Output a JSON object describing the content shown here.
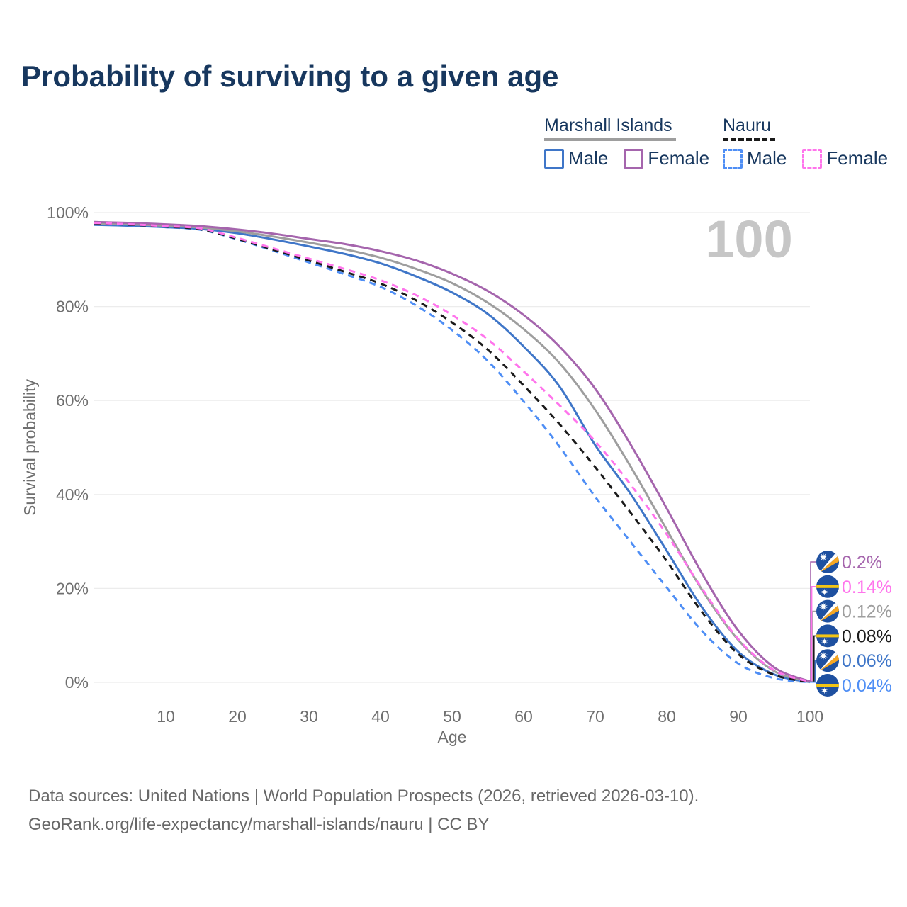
{
  "header": {
    "title": "Probability of surviving to a given age"
  },
  "legend": {
    "groups": [
      {
        "id": "marshall-islands",
        "label": "Marshall Islands",
        "underline_series": "mi-total",
        "items": [
          {
            "label": "Male",
            "series": "mi-male"
          },
          {
            "label": "Female",
            "series": "mi-female"
          }
        ]
      },
      {
        "id": "nauru",
        "label": "Nauru",
        "underline_series": "nauru-total",
        "items": [
          {
            "label": "Male",
            "series": "nauru-male"
          },
          {
            "label": "Female",
            "series": "nauru-female"
          }
        ]
      }
    ]
  },
  "chart_data": {
    "type": "line",
    "title": "Probability of surviving to a given age",
    "xlabel": "Age",
    "ylabel": "Survival probability",
    "watermark": "100",
    "grid": "horizontal",
    "legend_position": "top-right",
    "xlim": [
      0,
      100
    ],
    "ylim": [
      0,
      100
    ],
    "x_ticks": [
      10,
      20,
      30,
      40,
      50,
      60,
      70,
      80,
      90,
      100
    ],
    "y_ticks": [
      "0%",
      "20%",
      "40%",
      "60%",
      "80%",
      "100%"
    ],
    "x": [
      0,
      5,
      10,
      15,
      20,
      25,
      30,
      35,
      40,
      45,
      50,
      55,
      60,
      65,
      70,
      75,
      80,
      85,
      90,
      95,
      100
    ],
    "series": [
      {
        "id": "mi-male",
        "name": "Marshall Islands Male",
        "country": "Marshall Islands",
        "sex": "Male",
        "color": "#3f76c8",
        "line_style": "solid",
        "flag": "marshall-islands",
        "end_label": "0.06%",
        "end_value": 0.06,
        "values": [
          97.4,
          97.2,
          96.9,
          96.5,
          95.6,
          94.3,
          92.8,
          91.2,
          89.2,
          86.4,
          83.0,
          78.4,
          71.5,
          63.0,
          50.5,
          40.0,
          28.0,
          15.8,
          6.5,
          1.7,
          0.06
        ]
      },
      {
        "id": "mi-total",
        "name": "Marshall Islands",
        "country": "Marshall Islands",
        "sex": "Both",
        "color": "#9e9e9e",
        "line_style": "solid",
        "flag": "marshall-islands",
        "end_label": "0.12%",
        "end_value": 0.12,
        "values": [
          97.7,
          97.5,
          97.2,
          96.8,
          96.0,
          94.9,
          93.6,
          92.2,
          90.4,
          88.0,
          85.0,
          80.8,
          75.2,
          68.0,
          58.0,
          45.8,
          32.5,
          19.5,
          9.0,
          2.4,
          0.12
        ]
      },
      {
        "id": "mi-female",
        "name": "Marshall Islands Female",
        "country": "Marshall Islands",
        "sex": "Female",
        "color": "#a565ad",
        "line_style": "solid",
        "flag": "marshall-islands",
        "end_label": "0.2%",
        "end_value": 0.2,
        "values": [
          98.0,
          97.8,
          97.5,
          97.1,
          96.4,
          95.5,
          94.4,
          93.3,
          91.8,
          89.8,
          87.0,
          83.3,
          78.2,
          71.5,
          62.5,
          50.5,
          37.0,
          23.0,
          11.0,
          3.2,
          0.2
        ]
      },
      {
        "id": "nauru-male",
        "name": "Nauru Male",
        "country": "Nauru",
        "sex": "Male",
        "color": "#4e8ef5",
        "line_style": "dashed",
        "flag": "nauru",
        "end_label": "0.04%",
        "end_value": 0.04,
        "values": [
          97.6,
          97.3,
          96.9,
          96.3,
          94.3,
          91.9,
          89.4,
          86.9,
          84.2,
          80.2,
          75.0,
          68.4,
          59.8,
          50.2,
          39.5,
          29.8,
          20.2,
          10.8,
          4.0,
          0.9,
          0.04
        ]
      },
      {
        "id": "nauru-total",
        "name": "Nauru",
        "country": "Nauru",
        "sex": "Both",
        "color": "#1a1a1a",
        "line_style": "dashed",
        "flag": "nauru",
        "end_label": "0.08%",
        "end_value": 0.08,
        "values": [
          97.7,
          97.4,
          97.0,
          96.4,
          94.4,
          92.1,
          89.8,
          87.4,
          84.9,
          81.3,
          76.6,
          70.8,
          63.2,
          55.0,
          45.8,
          36.0,
          25.8,
          14.8,
          6.0,
          1.6,
          0.08
        ]
      },
      {
        "id": "nauru-female",
        "name": "Nauru Female",
        "country": "Nauru",
        "sex": "Female",
        "color": "#ff74ec",
        "line_style": "dashed",
        "flag": "nauru",
        "end_label": "0.14%",
        "end_value": 0.14,
        "values": [
          97.8,
          97.5,
          97.1,
          96.6,
          94.6,
          92.4,
          90.2,
          88.0,
          85.6,
          82.4,
          78.2,
          73.0,
          66.2,
          59.0,
          51.3,
          42.0,
          31.5,
          19.8,
          9.2,
          2.6,
          0.14
        ]
      }
    ]
  },
  "footer": {
    "line1": "Data sources: United Nations | World Population Prospects (2026, retrieved 2026-03-10).",
    "line2": "GeoRank.org/life-expectancy/marshall-islands/nauru | CC BY"
  }
}
